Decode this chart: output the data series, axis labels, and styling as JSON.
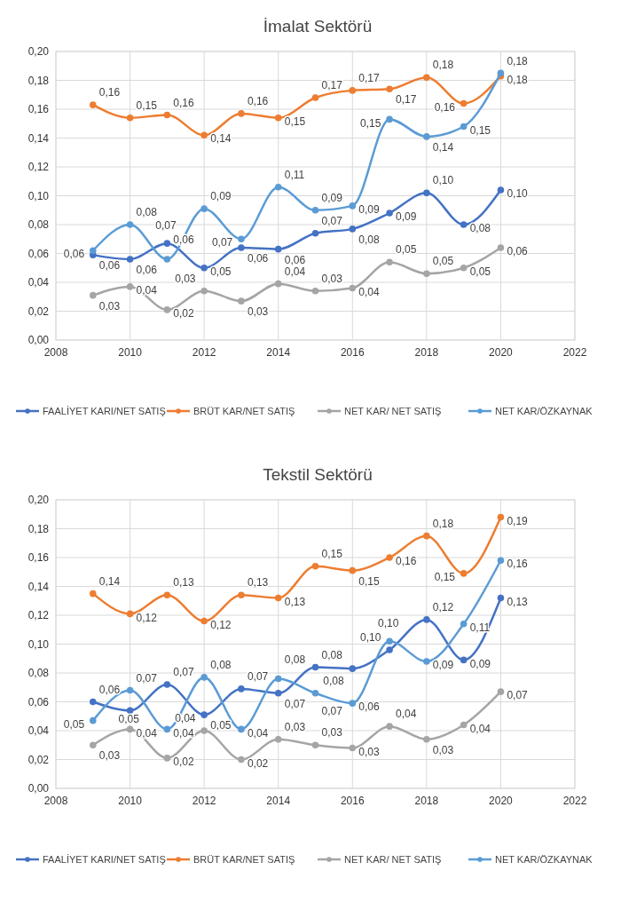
{
  "chart_data": [
    {
      "type": "line",
      "title": "İmalat Sektörü",
      "x": [
        2009,
        2010,
        2011,
        2012,
        2013,
        2014,
        2015,
        2016,
        2017,
        2018,
        2019,
        2020
      ],
      "xlim": [
        2008,
        2022
      ],
      "xticks": [
        2008,
        2010,
        2012,
        2014,
        2016,
        2018,
        2020,
        2022
      ],
      "ylim": [
        0,
        0.2
      ],
      "yticks": [
        {
          "value": 0,
          "label": "0,00"
        },
        {
          "value": 0.02,
          "label": "0,02"
        },
        {
          "value": 0.04,
          "label": "0,04"
        },
        {
          "value": 0.06,
          "label": "0,06"
        },
        {
          "value": 0.08,
          "label": "0,08"
        },
        {
          "value": 0.1,
          "label": "0,10"
        },
        {
          "value": 0.12,
          "label": "0,12"
        },
        {
          "value": 0.14,
          "label": "0,14"
        },
        {
          "value": 0.16,
          "label": "0,16"
        },
        {
          "value": 0.18,
          "label": "0,18"
        },
        {
          "value": 0.2,
          "label": "0,20"
        }
      ],
      "grid": true,
      "legend": "bottom",
      "marker": "circle",
      "series": [
        {
          "name": "FAALİYET KARI/NET SATIŞ",
          "color": "#4472c4",
          "values": [
            0.059,
            0.056,
            0.067,
            0.05,
            0.064,
            0.063,
            0.074,
            0.077,
            0.088,
            0.102,
            0.08,
            0.104
          ],
          "value_labels": [
            "0,06",
            "0,06",
            "0,07",
            "0,05",
            "0,06",
            "0,06",
            "0,07",
            "0,08",
            "0,09",
            "0,10",
            "0,08",
            "0,10"
          ]
        },
        {
          "name": "BRÜT KAR/NET SATIŞ",
          "color": "#ed7d31",
          "values": [
            0.163,
            0.154,
            0.156,
            0.142,
            0.157,
            0.154,
            0.168,
            0.173,
            0.174,
            0.182,
            0.164,
            0.183
          ],
          "value_labels": [
            "0,16",
            "0,15",
            "0,16",
            "0,14",
            "0,16",
            "0,15",
            "0,17",
            "0,17",
            "0,17",
            "0,18",
            "0,16",
            "0,18"
          ]
        },
        {
          "name": "NET KAR/ NET SATIŞ",
          "color": "#a5a5a5",
          "values": [
            0.031,
            0.037,
            0.021,
            0.034,
            0.027,
            0.039,
            0.034,
            0.036,
            0.054,
            0.046,
            0.05,
            0.064
          ],
          "value_labels": [
            "0,03",
            "0,04",
            "0,02",
            "0,03",
            "0,03",
            "0,04",
            "0,03",
            "0,04",
            "0,05",
            "0,05",
            "0,05",
            "0,06"
          ]
        },
        {
          "name": "NET KAR/ÖZKAYNAK",
          "color": "#5b9bd5",
          "values": [
            0.062,
            0.08,
            0.056,
            0.091,
            0.07,
            0.106,
            0.09,
            0.093,
            0.153,
            0.141,
            0.148,
            0.185
          ],
          "value_labels": [
            "0,06",
            "0,08",
            "0,06",
            "0,09",
            "0,07",
            "0,11",
            "0,09",
            "0,09",
            "0,15",
            "0,14",
            "0,15",
            "0,18"
          ]
        }
      ]
    },
    {
      "type": "line",
      "title": "Tekstil Sektörü",
      "x": [
        2009,
        2010,
        2011,
        2012,
        2013,
        2014,
        2015,
        2016,
        2017,
        2018,
        2019,
        2020
      ],
      "xlim": [
        2008,
        2022
      ],
      "xticks": [
        2008,
        2010,
        2012,
        2014,
        2016,
        2018,
        2020,
        2022
      ],
      "ylim": [
        0,
        0.2
      ],
      "yticks": [
        {
          "value": 0,
          "label": "0,00"
        },
        {
          "value": 0.02,
          "label": "0,02"
        },
        {
          "value": 0.04,
          "label": "0,04"
        },
        {
          "value": 0.06,
          "label": "0,06"
        },
        {
          "value": 0.08,
          "label": "0,08"
        },
        {
          "value": 0.1,
          "label": "0,10"
        },
        {
          "value": 0.12,
          "label": "0,12"
        },
        {
          "value": 0.14,
          "label": "0,14"
        },
        {
          "value": 0.16,
          "label": "0,16"
        },
        {
          "value": 0.18,
          "label": "0,18"
        },
        {
          "value": 0.2,
          "label": "0,20"
        }
      ],
      "grid": true,
      "legend": "bottom",
      "marker": "circle",
      "series": [
        {
          "name": "FAALİYET KARI/NET SATIŞ",
          "color": "#4472c4",
          "values": [
            0.06,
            0.054,
            0.072,
            0.051,
            0.069,
            0.066,
            0.084,
            0.083,
            0.096,
            0.117,
            0.089,
            0.132
          ],
          "value_labels": [
            "0,06",
            "0,05",
            "0,07",
            "0,05",
            "0,07",
            "0,07",
            "0,08",
            "0,08",
            "0,10",
            "0,12",
            "0,09",
            "0,13"
          ]
        },
        {
          "name": "BRÜT KAR/NET SATIŞ",
          "color": "#ed7d31",
          "values": [
            0.135,
            0.121,
            0.134,
            0.116,
            0.134,
            0.132,
            0.154,
            0.151,
            0.16,
            0.175,
            0.149,
            0.188
          ],
          "value_labels": [
            "0,14",
            "0,12",
            "0,13",
            "0,12",
            "0,13",
            "0,13",
            "0,15",
            "0,15",
            "0,16",
            "0,18",
            "0,15",
            "0,19"
          ]
        },
        {
          "name": "NET KAR/ NET SATIŞ",
          "color": "#a5a5a5",
          "values": [
            0.03,
            0.041,
            0.021,
            0.04,
            0.02,
            0.034,
            0.03,
            0.028,
            0.043,
            0.034,
            0.044,
            0.067
          ],
          "value_labels": [
            "0,03",
            "0,04",
            "0,02",
            "0,04",
            "0,02",
            "0,03",
            "0,03",
            "0,03",
            "0,04",
            "0,03",
            "0,04",
            "0,07"
          ]
        },
        {
          "name": "NET KAR/ÖZKAYNAK",
          "color": "#5b9bd5",
          "values": [
            0.047,
            0.068,
            0.041,
            0.077,
            0.041,
            0.076,
            0.066,
            0.059,
            0.102,
            0.088,
            0.114,
            0.158
          ],
          "value_labels": [
            "0,05",
            "0,07",
            "0,04",
            "0,08",
            "0,04",
            "0,08",
            "0,07",
            "0,06",
            "0,10",
            "0,09",
            "0,11",
            "0,16"
          ]
        }
      ]
    }
  ]
}
